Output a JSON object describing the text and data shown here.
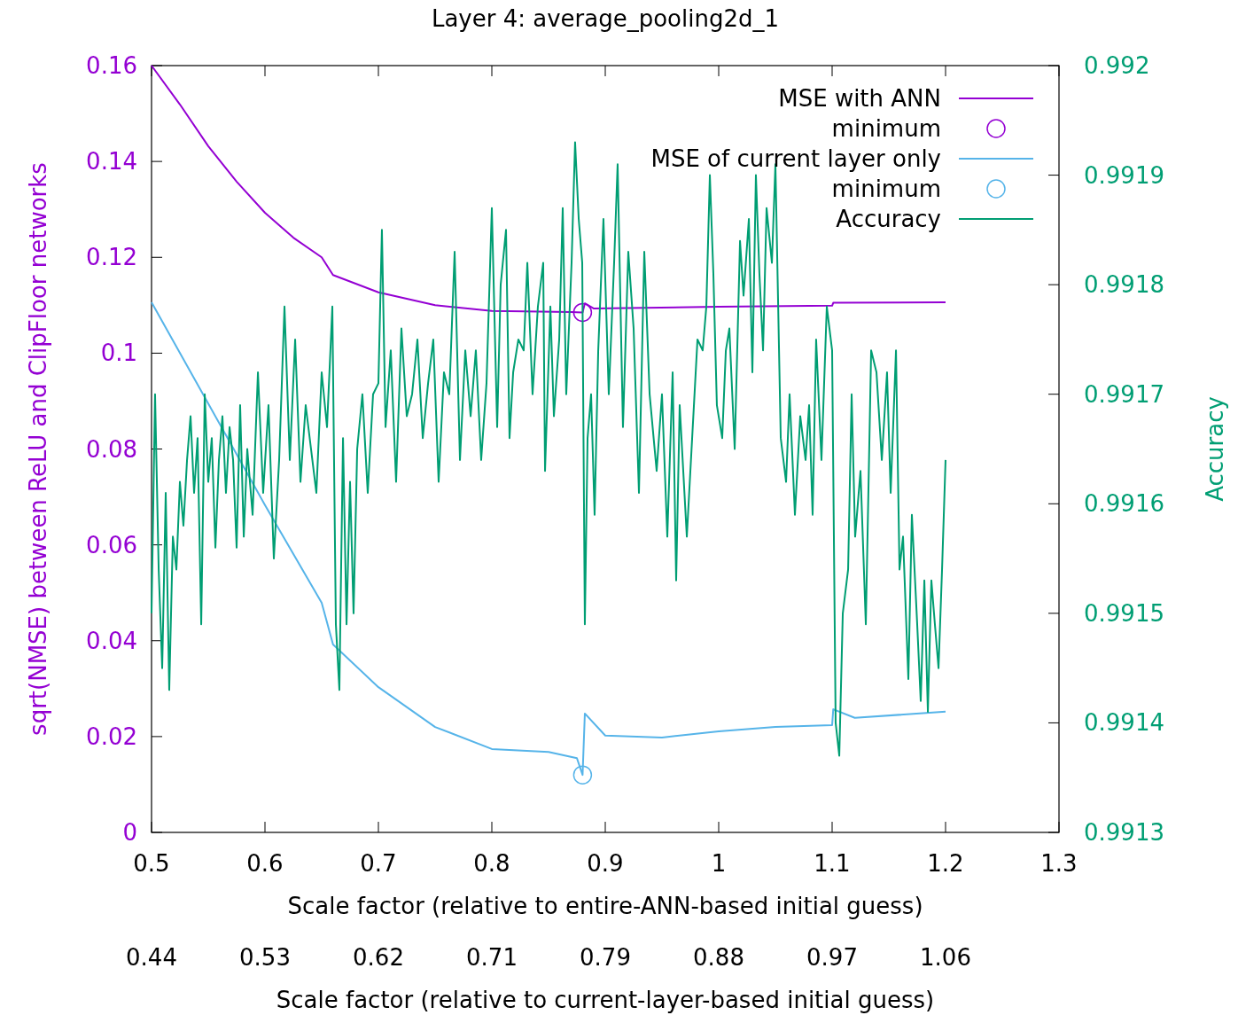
{
  "chart_data": {
    "type": "line",
    "title": "Layer 4: average_pooling2d_1",
    "xlabel": "Scale factor (relative to entire-ANN-based initial guess)",
    "x2label": "Scale factor (relative to current-layer-based initial guess)",
    "ylabel": "sqrt(NMSE) between ReLU and ClipFloor networks",
    "y2label": "Accuracy",
    "xlim": [
      0.5,
      1.3
    ],
    "xticks": [
      0.5,
      0.6,
      0.7,
      0.8,
      0.9,
      1,
      1.1,
      1.2,
      1.3
    ],
    "x2lim": [
      0.44167,
      1.14833
    ],
    "x2ticks": [
      {
        "value": 0.44167,
        "label": "0.44"
      },
      {
        "value": 0.53,
        "label": "0.53"
      },
      {
        "value": 0.61833,
        "label": "0.62"
      },
      {
        "value": 0.70667,
        "label": "0.71"
      },
      {
        "value": 0.795,
        "label": "0.79"
      },
      {
        "value": 0.88333,
        "label": "0.88"
      },
      {
        "value": 0.97167,
        "label": "0.97"
      },
      {
        "value": 1.06,
        "label": "1.06"
      }
    ],
    "ylim": [
      0,
      0.16
    ],
    "yticks": [
      0,
      0.02,
      0.04,
      0.06,
      0.08,
      0.1,
      0.12,
      0.14,
      0.16
    ],
    "y2lim": [
      0.9913,
      0.992
    ],
    "y2ticks": [
      0.9913,
      0.9914,
      0.9915,
      0.9916,
      0.9917,
      0.9918,
      0.9919,
      0.992
    ],
    "grid": false,
    "legend": "top right",
    "series": [
      {
        "name": "MSE with ANN",
        "color": "#9400d3",
        "marker": "none",
        "x": [
          0.5,
          0.525,
          0.55,
          0.575,
          0.6,
          0.625,
          0.65,
          0.66,
          0.7,
          0.75,
          0.8,
          0.87,
          0.88,
          0.882,
          0.89,
          1.0,
          1.1,
          1.101,
          1.2
        ],
        "values": [
          0.16,
          0.1519,
          0.1432,
          0.1358,
          0.1293,
          0.1241,
          0.12,
          0.1163,
          0.1127,
          0.11,
          0.1088,
          0.1086,
          0.1085,
          0.1104,
          0.1093,
          0.1097,
          0.1099,
          0.1105,
          0.1106
        ]
      },
      {
        "name": "minimum",
        "type": "scatter",
        "color": "#9400d3",
        "marker": "circle",
        "x": [
          0.88
        ],
        "values": [
          0.1085
        ]
      },
      {
        "name": "MSE of current layer only",
        "color": "#56b4e9",
        "marker": "none",
        "x": [
          0.5,
          0.55,
          0.6,
          0.65,
          0.66,
          0.7,
          0.75,
          0.8,
          0.85,
          0.875,
          0.88,
          0.882,
          0.9,
          0.95,
          1.0,
          1.05,
          1.1,
          1.101,
          1.12,
          1.2
        ],
        "values": [
          0.1106,
          0.0895,
          0.0683,
          0.0479,
          0.0392,
          0.0303,
          0.022,
          0.0174,
          0.0168,
          0.0155,
          0.012,
          0.0248,
          0.0202,
          0.0198,
          0.0211,
          0.022,
          0.0224,
          0.0257,
          0.0239,
          0.0252
        ]
      },
      {
        "name": "minimum",
        "type": "scatter",
        "color": "#56b4e9",
        "marker": "circle",
        "x": [
          0.88
        ],
        "values": [
          0.012
        ]
      },
      {
        "name": "Accuracy",
        "axis": "y2",
        "color": "#009e73",
        "marker": "none",
        "x": [
          0.5,
          0.5031,
          0.5063,
          0.5094,
          0.5125,
          0.5156,
          0.5188,
          0.5219,
          0.525,
          0.5281,
          0.5313,
          0.5344,
          0.5375,
          0.5406,
          0.5438,
          0.5469,
          0.55,
          0.5531,
          0.5563,
          0.5594,
          0.5625,
          0.5656,
          0.5688,
          0.5719,
          0.575,
          0.5781,
          0.5813,
          0.5844,
          0.5891,
          0.5938,
          0.5984,
          0.6031,
          0.6078,
          0.6125,
          0.6172,
          0.6219,
          0.6266,
          0.6313,
          0.6359,
          0.6406,
          0.6453,
          0.65,
          0.6547,
          0.6594,
          0.6625,
          0.6656,
          0.6688,
          0.6719,
          0.675,
          0.6781,
          0.6813,
          0.6859,
          0.6906,
          0.6953,
          0.7,
          0.7031,
          0.7063,
          0.7109,
          0.7156,
          0.7203,
          0.725,
          0.7297,
          0.7344,
          0.7391,
          0.7438,
          0.7484,
          0.7531,
          0.7578,
          0.7625,
          0.7672,
          0.7719,
          0.7766,
          0.7813,
          0.7859,
          0.7906,
          0.7953,
          0.8,
          0.8047,
          0.8078,
          0.8125,
          0.8156,
          0.8188,
          0.8234,
          0.8281,
          0.8313,
          0.8359,
          0.8406,
          0.8453,
          0.8469,
          0.8516,
          0.8547,
          0.8594,
          0.8625,
          0.8656,
          0.8703,
          0.8734,
          0.8766,
          0.8797,
          0.882,
          0.8844,
          0.8875,
          0.8906,
          0.8938,
          0.8984,
          0.9031,
          0.9078,
          0.9109,
          0.9156,
          0.9203,
          0.925,
          0.9297,
          0.9344,
          0.9391,
          0.9453,
          0.95,
          0.9547,
          0.9594,
          0.9625,
          0.9656,
          0.9719,
          0.9766,
          0.9813,
          0.9859,
          0.9891,
          0.9922,
          0.9953,
          0.9984,
          1.0031,
          1.0063,
          1.0094,
          1.0141,
          1.0188,
          1.0219,
          1.0266,
          1.0297,
          1.0328,
          1.0359,
          1.0391,
          1.0422,
          1.0469,
          1.05,
          1.0547,
          1.0594,
          1.0625,
          1.0672,
          1.0719,
          1.0766,
          1.0797,
          1.0828,
          1.0859,
          1.0906,
          1.0953,
          1.1,
          1.1031,
          1.1063,
          1.1094,
          1.1141,
          1.1172,
          1.1203,
          1.125,
          1.1297,
          1.1344,
          1.1391,
          1.1438,
          1.1484,
          1.1516,
          1.1563,
          1.1594,
          1.1625,
          1.1672,
          1.1703,
          1.175,
          1.1781,
          1.1813,
          1.1844,
          1.1875,
          1.1906,
          1.1938,
          1.1969,
          1.2
        ],
        "values": [
          0.9915,
          0.9917,
          0.99154,
          0.99145,
          0.99161,
          0.99143,
          0.99157,
          0.99154,
          0.99162,
          0.99158,
          0.99164,
          0.99168,
          0.99161,
          0.99166,
          0.99149,
          0.9917,
          0.99162,
          0.99166,
          0.99156,
          0.99164,
          0.99168,
          0.99161,
          0.99167,
          0.99164,
          0.99156,
          0.99169,
          0.99157,
          0.99165,
          0.99159,
          0.99172,
          0.99161,
          0.99169,
          0.99155,
          0.99164,
          0.99178,
          0.99164,
          0.99175,
          0.99162,
          0.99169,
          0.99165,
          0.99161,
          0.99172,
          0.99167,
          0.99178,
          0.99149,
          0.99143,
          0.99166,
          0.99149,
          0.99162,
          0.9915,
          0.99165,
          0.9917,
          0.99161,
          0.9917,
          0.99171,
          0.99185,
          0.99167,
          0.99174,
          0.99162,
          0.99176,
          0.99168,
          0.9917,
          0.99175,
          0.99166,
          0.99171,
          0.99175,
          0.99162,
          0.99172,
          0.9917,
          0.99183,
          0.99164,
          0.99174,
          0.99168,
          0.99174,
          0.99164,
          0.99171,
          0.99187,
          0.99167,
          0.9918,
          0.99185,
          0.99166,
          0.99172,
          0.99175,
          0.99174,
          0.99182,
          0.9917,
          0.99178,
          0.99182,
          0.99163,
          0.99178,
          0.99168,
          0.99175,
          0.99187,
          0.9917,
          0.99182,
          0.99193,
          0.99186,
          0.99182,
          0.99149,
          0.99166,
          0.9917,
          0.99159,
          0.99174,
          0.99186,
          0.9917,
          0.99182,
          0.99191,
          0.99167,
          0.99183,
          0.99176,
          0.99161,
          0.99183,
          0.9917,
          0.99163,
          0.9917,
          0.99157,
          0.99172,
          0.99153,
          0.99169,
          0.99157,
          0.99166,
          0.99175,
          0.99174,
          0.99178,
          0.9919,
          0.99181,
          0.99169,
          0.99166,
          0.99174,
          0.99176,
          0.99165,
          0.99184,
          0.99179,
          0.99186,
          0.99172,
          0.9919,
          0.99181,
          0.99174,
          0.99187,
          0.99182,
          0.99191,
          0.99166,
          0.99162,
          0.9917,
          0.99159,
          0.99168,
          0.99164,
          0.99169,
          0.99159,
          0.99175,
          0.99164,
          0.99178,
          0.99174,
          0.9914,
          0.99137,
          0.9915,
          0.99154,
          0.9917,
          0.99157,
          0.99163,
          0.99149,
          0.99174,
          0.99172,
          0.99164,
          0.99172,
          0.99161,
          0.99174,
          0.99154,
          0.99157,
          0.99144,
          0.99159,
          0.99149,
          0.99142,
          0.99153,
          0.99141,
          0.99153,
          0.99149,
          0.99145,
          0.99154,
          0.99164
        ]
      }
    ]
  }
}
